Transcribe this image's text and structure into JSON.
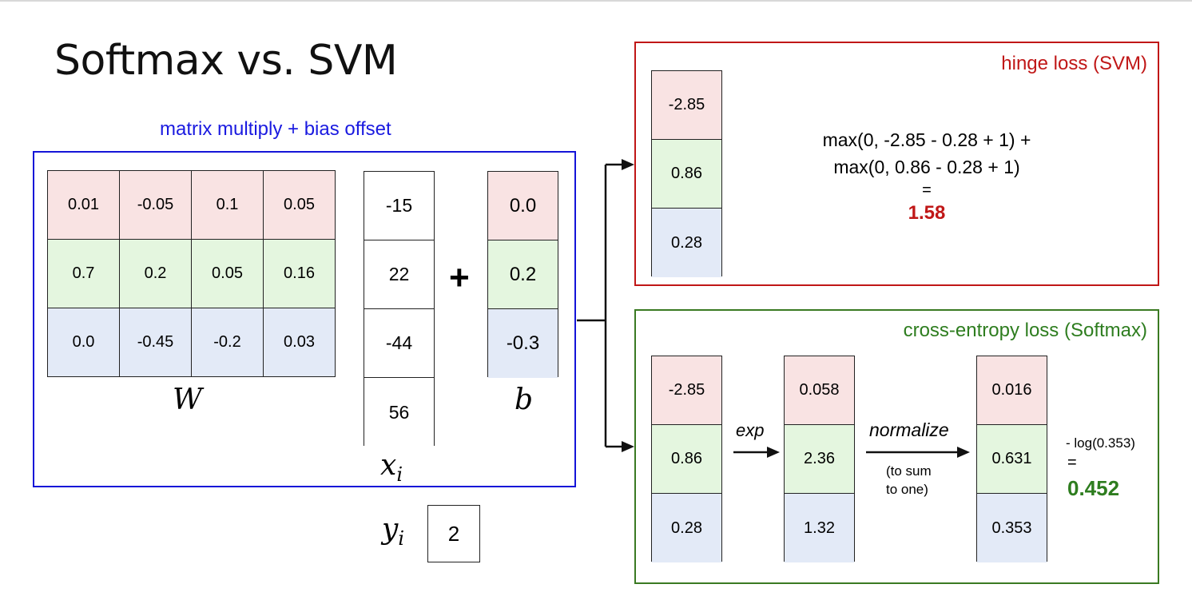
{
  "title": "Softmax vs. SVM",
  "matrix_caption": "matrix multiply + bias offset",
  "W": {
    "rows": [
      [
        "0.01",
        "-0.05",
        "0.1",
        "0.05"
      ],
      [
        "0.7",
        "0.2",
        "0.05",
        "0.16"
      ],
      [
        "0.0",
        "-0.45",
        "-0.2",
        "0.03"
      ]
    ],
    "symbol": "W"
  },
  "x": {
    "values": [
      "-15",
      "22",
      "-44",
      "56"
    ],
    "symbol": "x",
    "subscript": "i"
  },
  "plus_sign": "+",
  "b": {
    "values": [
      "0.0",
      "0.2",
      "-0.3"
    ],
    "symbol": "b"
  },
  "y": {
    "symbol": "y",
    "subscript": "i",
    "value": "2"
  },
  "svm": {
    "label": "hinge loss (SVM)",
    "scores": [
      "-2.85",
      "0.86",
      "0.28"
    ],
    "formula_line1": "max(0, -2.85 - 0.28 + 1) +",
    "formula_line2": "max(0, 0.86 - 0.28 + 1)",
    "equals": "=",
    "result": "1.58"
  },
  "softmax": {
    "label": "cross-entropy loss (Softmax)",
    "scores": [
      "-2.85",
      "0.86",
      "0.28"
    ],
    "exp_label": "exp",
    "exp_values": [
      "0.058",
      "2.36",
      "1.32"
    ],
    "normalize_label": "normalize",
    "normalize_note_line1": "(to sum",
    "normalize_note_line2": "to one)",
    "probs": [
      "0.016",
      "0.631",
      "0.353"
    ],
    "loss_expr": "- log(0.353)",
    "equals": "=",
    "result": "0.452"
  },
  "colors": {
    "blue_box": "#1414d8",
    "red_box": "#c01717",
    "green_box": "#3a7a22",
    "row_red": "#f9e3e3",
    "row_green": "#e4f6df",
    "row_blue": "#e3eaf7"
  }
}
